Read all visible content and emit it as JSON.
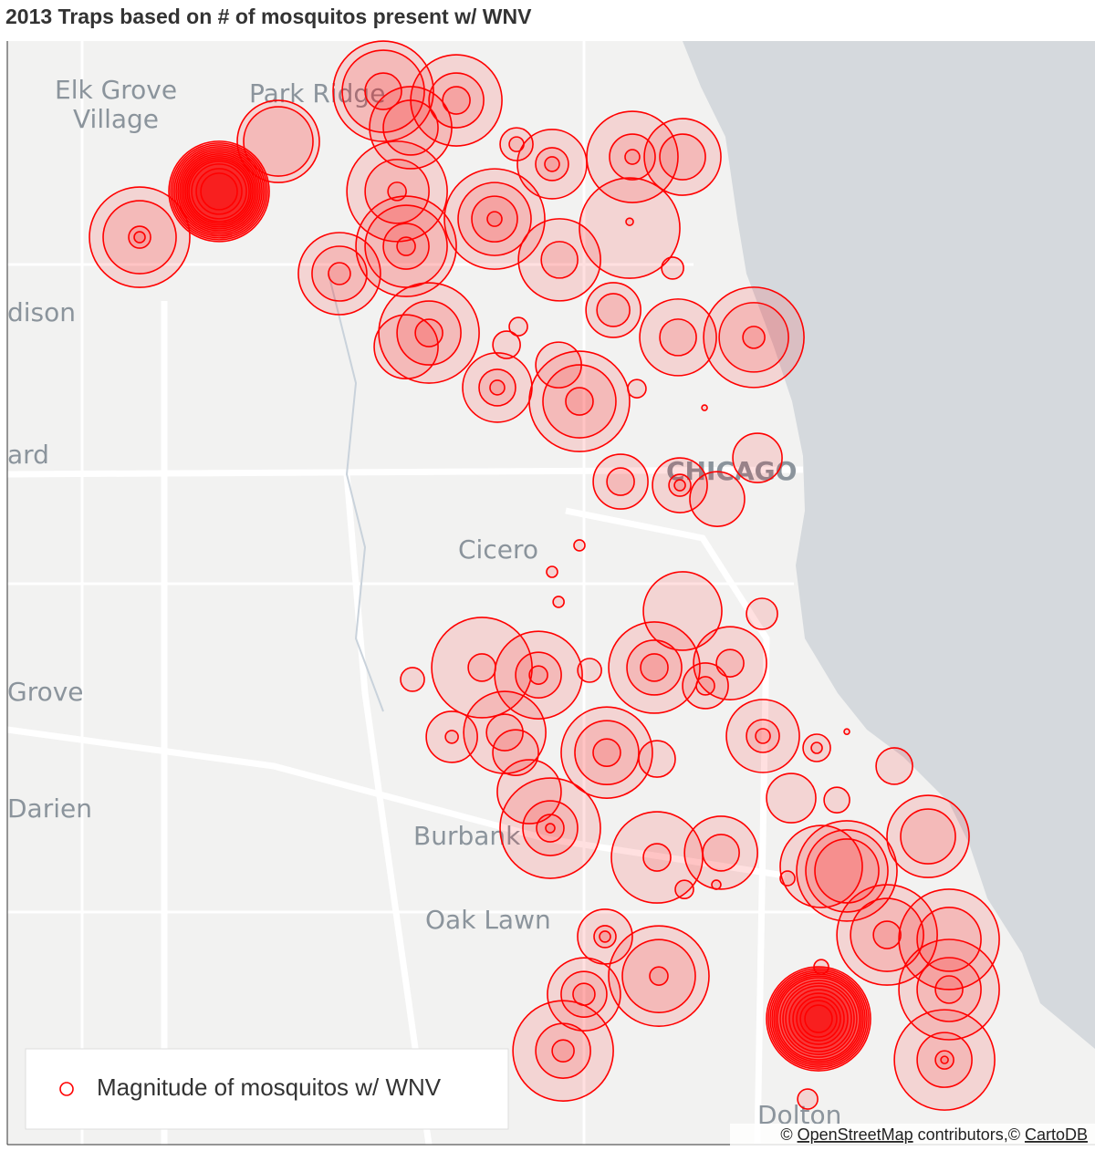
{
  "chart_data": {
    "type": "bubble",
    "title": "2013 Traps based on # of mosquitos present w/ WNV",
    "xlim": [
      -88.03,
      -87.43
    ],
    "ylim": [
      41.63,
      42.03
    ],
    "legend": "lower left",
    "series": [
      {
        "name": "Magnitude of mosquitos w/ WNV",
        "color": "#ff0000",
        "x": [
          -87.9132,
          -87.957,
          -87.8805,
          -87.8226,
          -87.7823,
          -87.8075,
          -87.815,
          -87.81,
          -87.8468,
          -87.7612,
          -87.7491,
          -87.7295,
          -87.6852,
          -87.6575,
          -87.6867,
          -87.6867,
          -87.7254,
          -87.663,
          -87.6957,
          -87.7974,
          -87.81,
          -87.7546,
          -87.7481,
          -87.7597,
          -87.7144,
          -87.7259,
          -87.6827,
          -87.66,
          -87.6182,
          -87.6917,
          -87.659,
          -87.6384,
          -87.6162,
          -87.7144,
          -87.7295,
          -87.7259,
          -87.6575,
          -87.6137,
          -87.7682,
          -87.737,
          -87.6731,
          -87.6449,
          -87.6313,
          -87.7088,
          -87.8065,
          -87.7848,
          -87.7556,
          -87.7496,
          -87.6993,
          -87.6716,
          -87.6132,
          -87.5835,
          -87.5976,
          -87.5724,
          -87.5407,
          -87.7421,
          -87.7305,
          -87.6716,
          -87.6363,
          -87.6565,
          -87.6389,
          -87.5669,
          -87.581,
          -87.5996,
          -87.5221,
          -87.5447,
          -87.5105,
          -87.5105,
          -87.7003,
          -87.7119,
          -87.6706,
          -87.7234,
          -87.5825,
          -87.581,
          -87.513,
          -87.5885,
          -87.5669,
          -87.6454
        ],
        "values": [
          41.9755,
          41.9589,
          41.9936,
          42.0118,
          42.0085,
          41.9986,
          41.9755,
          41.9556,
          41.9457,
          41.9655,
          41.9926,
          41.9854,
          41.988,
          41.988,
          41.9622,
          41.9645,
          41.9507,
          41.9477,
          41.9325,
          41.9242,
          41.9192,
          41.9199,
          41.9265,
          41.9044,
          41.8994,
          41.9126,
          41.904,
          41.9226,
          41.9226,
          41.8703,
          41.869,
          41.864,
          41.8789,
          41.8472,
          41.8376,
          41.8267,
          41.8234,
          41.8224,
          41.8029,
          41.8002,
          41.8029,
          41.7963,
          41.8045,
          41.8019,
          41.7986,
          41.7778,
          41.7794,
          41.7721,
          41.7721,
          41.7698,
          41.7781,
          41.7738,
          41.7556,
          41.7549,
          41.7672,
          41.7579,
          41.7447,
          41.7341,
          41.7358,
          41.7225,
          41.7242,
          41.7292,
          41.7308,
          41.7265,
          41.7417,
          41.706,
          41.7044,
          41.6862,
          41.7054,
          41.6845,
          41.6911,
          41.664,
          41.6756,
          41.6944,
          41.6607,
          41.6465,
          41.7797,
          41.8971
        ],
        "sizes": [
          [
            55,
            53,
            51,
            49,
            47,
            45,
            43,
            41,
            39,
            37,
            35,
            33,
            30,
            25,
            20
          ],
          [
            55,
            40,
            12,
            6
          ],
          [
            45,
            38
          ],
          [
            55,
            45,
            20
          ],
          [
            50,
            30,
            15
          ],
          [
            45,
            30
          ],
          [
            55,
            35,
            10
          ],
          [
            55,
            45,
            25,
            10
          ],
          [
            45,
            30,
            12
          ],
          [
            55,
            40,
            25,
            8
          ],
          [
            18,
            8
          ],
          [
            38,
            18,
            8
          ],
          [
            50,
            25,
            8
          ],
          [
            42,
            25
          ],
          [
            55
          ],
          [
            4
          ],
          [
            45,
            20
          ],
          [
            12
          ],
          [
            30,
            18
          ],
          [
            55,
            35,
            15
          ],
          [
            35
          ],
          [
            15
          ],
          [
            10
          ],
          [
            38,
            20,
            8
          ],
          [
            55,
            40,
            15
          ],
          [
            25
          ],
          [
            10
          ],
          [
            42,
            20
          ],
          [
            55,
            38,
            12
          ],
          [
            30,
            15
          ],
          [
            30,
            12,
            6
          ],
          [
            30
          ],
          [
            27
          ],
          [
            6
          ],
          [
            6
          ],
          [
            6
          ],
          [
            43
          ],
          [
            17
          ],
          [
            55,
            15
          ],
          [
            48,
            25,
            10
          ],
          [
            50,
            30,
            15
          ],
          [
            25,
            10
          ],
          [
            40,
            15
          ],
          [
            13
          ],
          [
            13
          ],
          [
            28,
            7
          ],
          [
            45,
            20
          ],
          [
            25
          ],
          [
            50,
            35,
            15
          ],
          [
            20
          ],
          [
            40,
            18,
            8
          ],
          [
            15,
            6
          ],
          [
            27
          ],
          [
            14
          ],
          [
            20
          ],
          [
            35
          ],
          [
            55,
            30,
            15,
            5
          ],
          [
            50,
            15
          ],
          [
            40,
            20
          ],
          [
            10
          ],
          [
            5
          ],
          [
            55,
            45,
            35
          ],
          [
            45
          ],
          [
            8
          ],
          [
            45,
            30
          ],
          [
            55,
            40,
            15
          ],
          [
            55,
            35
          ],
          [
            55,
            35,
            15
          ],
          [
            30,
            12,
            6
          ],
          [
            40,
            25,
            12
          ],
          [
            55,
            40,
            10
          ],
          [
            55,
            30,
            12
          ],
          [
            57,
            55,
            53,
            51,
            49,
            47,
            45,
            42,
            39,
            36,
            32,
            28,
            24,
            20,
            15
          ],
          [
            8
          ],
          [
            55,
            30,
            10,
            4
          ],
          [
            11
          ],
          [
            3
          ],
          [
            3
          ]
        ]
      }
    ]
  },
  "map_labels": [
    "Elk Grove",
    "Village",
    "Park Ridge",
    "dison",
    "ard",
    "CHICAGO",
    "Cicero",
    "Grove",
    "Darien",
    "Burbank",
    "Oak Lawn",
    "Dolton"
  ],
  "attribution": {
    "prefix": "© ",
    "osm": "OpenStreetMap",
    "middle": " contributors,© ",
    "carto": "CartoDB"
  }
}
